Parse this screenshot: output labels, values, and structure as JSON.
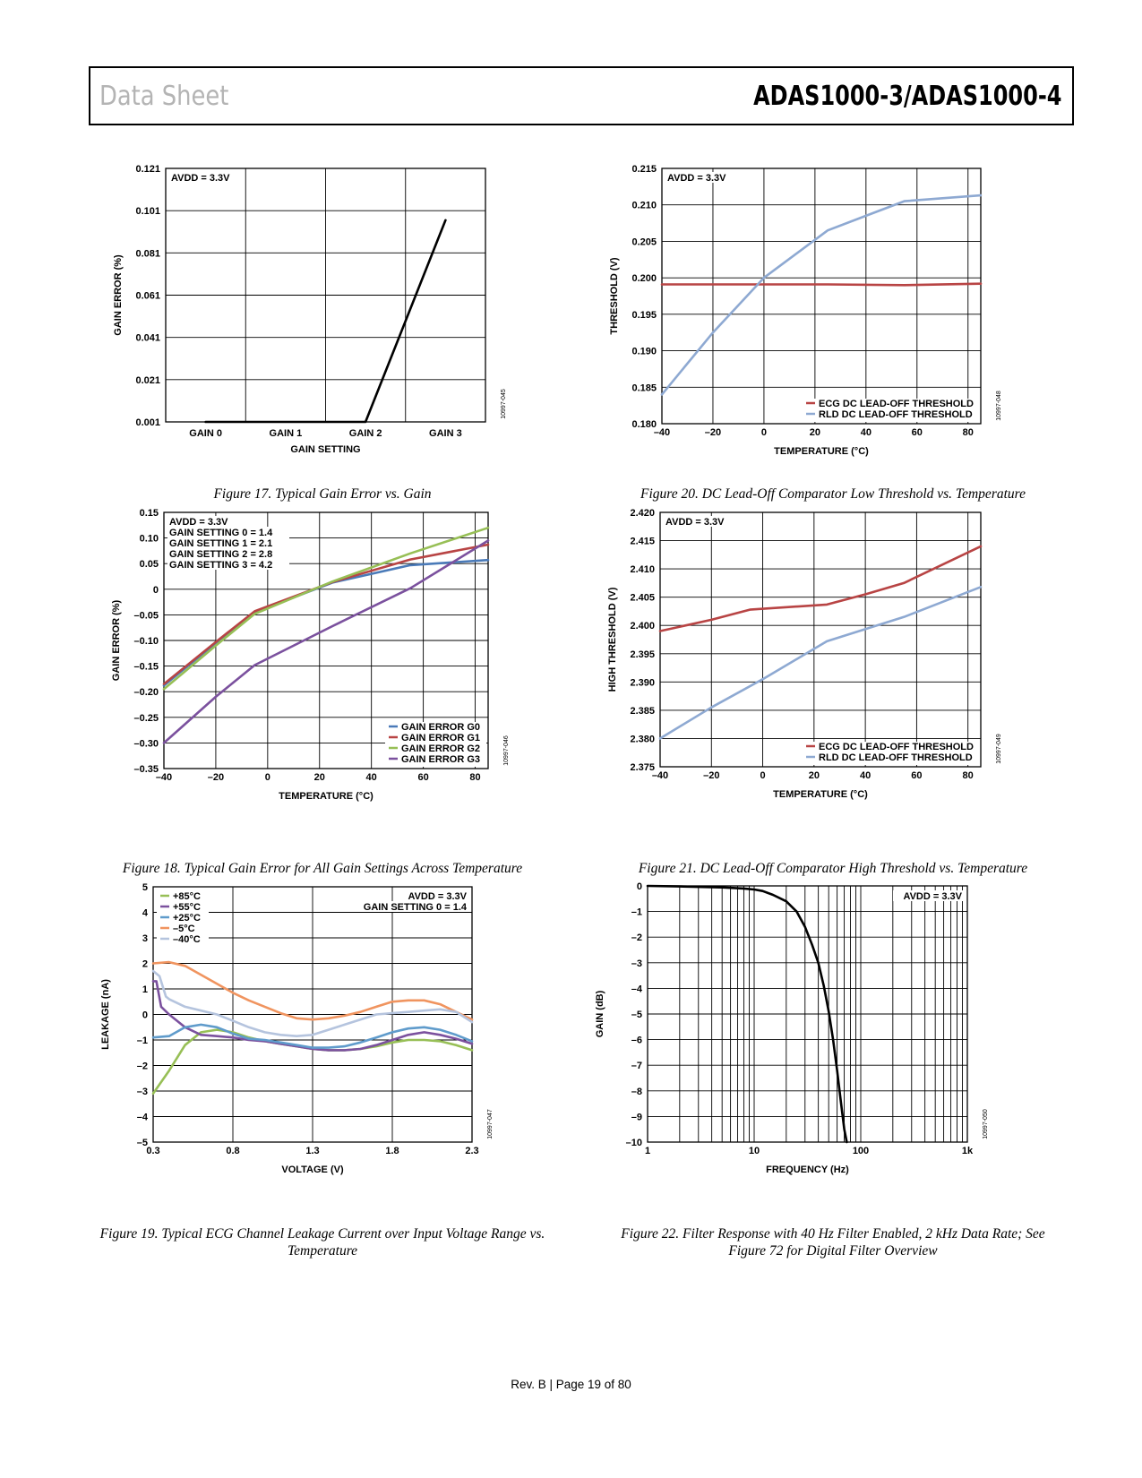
{
  "header": {
    "left": "Data Sheet",
    "right": "ADAS1000-3/ADAS1000-4"
  },
  "footer": "Rev. B | Page 19 of 80",
  "figures": [
    {
      "caption": "Figure 17. Typical Gain Error vs. Gain"
    },
    {
      "caption": "Figure 18. Typical Gain Error for All Gain Settings Across Temperature"
    },
    {
      "caption": "Figure 19. Typical ECG Channel Leakage Current over Input Voltage Range vs. Temperature"
    },
    {
      "caption": "Figure 20. DC Lead-Off Comparator Low Threshold vs. Temperature"
    },
    {
      "caption": "Figure 21. DC Lead-Off Comparator High Threshold vs. Temperature"
    },
    {
      "caption": "Figure 22. Filter Response with 40 Hz Filter Enabled, 2 kHz Data Rate; See Figure 72 for Digital Filter Overview"
    }
  ],
  "chart_data": [
    {
      "id": "fig17",
      "type": "line",
      "code": "10997-045",
      "xlabel": "GAIN SETTING",
      "ylabel": "GAIN ERROR (%)",
      "x_scale": "categorical",
      "xlim": [
        -0.5,
        3.5
      ],
      "ylim": [
        0.001,
        0.121
      ],
      "categories": [
        "GAIN 0",
        "GAIN 1",
        "GAIN 2",
        "GAIN 3"
      ],
      "yticks": [
        0.001,
        0.021,
        0.041,
        0.061,
        0.081,
        0.101,
        0.121
      ],
      "ytick_labels": [
        "0.001",
        "0.021",
        "0.041",
        "0.061",
        "0.081",
        "0.101",
        "0.121"
      ],
      "grid": true,
      "annotations": [
        {
          "text": "AVDD = 3.3V",
          "pos": "top-left"
        }
      ],
      "series": [
        {
          "color": "#000000",
          "x": [
            0,
            1,
            2,
            3
          ],
          "y": [
            0.001,
            0.001,
            0.001,
            0.0965
          ]
        }
      ]
    },
    {
      "id": "fig18",
      "type": "line",
      "code": "10997-046",
      "xlabel": "TEMPERATURE (°C)",
      "ylabel": "GAIN ERROR (%)",
      "xlim": [
        -40,
        85
      ],
      "ylim": [
        -0.35,
        0.15
      ],
      "xticks": [
        -40,
        -20,
        0,
        20,
        40,
        60,
        80
      ],
      "xtick_labels": [
        "–40",
        "–20",
        "0",
        "20",
        "40",
        "60",
        "80"
      ],
      "yticks": [
        -0.35,
        -0.3,
        -0.25,
        -0.2,
        -0.15,
        -0.1,
        -0.05,
        0,
        0.05,
        0.1,
        0.15
      ],
      "ytick_labels": [
        "–0.35",
        "–0.30",
        "–0.25",
        "–0.20",
        "–0.15",
        "–0.10",
        "–0.05",
        "0",
        "0.05",
        "0.10",
        "0.15"
      ],
      "grid": true,
      "legend": "bottom-right",
      "annotations": [
        {
          "text": "AVDD = 3.3V",
          "pos": "top-left"
        },
        {
          "text": "GAIN SETTING 0 = 1.4",
          "pos": "top-left"
        },
        {
          "text": "GAIN SETTING 1 = 2.1",
          "pos": "top-left"
        },
        {
          "text": "GAIN SETTING 2 = 2.8",
          "pos": "top-left"
        },
        {
          "text": "GAIN SETTING 3 = 4.2",
          "pos": "top-left"
        }
      ],
      "series": [
        {
          "name": "GAIN ERROR G0",
          "color": "#4a7ab8",
          "x": [
            -40,
            -20,
            -5,
            25,
            55,
            85
          ],
          "y": [
            -0.188,
            -0.105,
            -0.045,
            0.013,
            0.047,
            0.057
          ]
        },
        {
          "name": "GAIN ERROR G1",
          "color": "#b84444",
          "x": [
            -40,
            -20,
            -5,
            25,
            55,
            85
          ],
          "y": [
            -0.185,
            -0.103,
            -0.043,
            0.014,
            0.058,
            0.087
          ]
        },
        {
          "name": "GAIN ERROR G2",
          "color": "#97bf56",
          "x": [
            -40,
            -20,
            -5,
            25,
            55,
            85
          ],
          "y": [
            -0.195,
            -0.11,
            -0.048,
            0.015,
            0.07,
            0.12
          ]
        },
        {
          "name": "GAIN ERROR G3",
          "color": "#7b519e",
          "x": [
            -40,
            -20,
            -5,
            25,
            55,
            85
          ],
          "y": [
            -0.3,
            -0.21,
            -0.148,
            -0.072,
            0.002,
            0.095
          ]
        }
      ]
    },
    {
      "id": "fig19",
      "type": "line",
      "code": "10997-047",
      "xlabel": "VOLTAGE (V)",
      "ylabel": "LEAKAGE (nA)",
      "xlim": [
        0.3,
        2.3
      ],
      "ylim": [
        -5,
        5
      ],
      "xticks": [
        0.3,
        0.8,
        1.3,
        1.8,
        2.3
      ],
      "xtick_labels": [
        "0.3",
        "0.8",
        "1.3",
        "1.8",
        "2.3"
      ],
      "yticks": [
        -5,
        -4,
        -3,
        -2,
        -1,
        0,
        1,
        2,
        3,
        4,
        5
      ],
      "ytick_labels": [
        "–5",
        "–4",
        "–3",
        "–2",
        "–1",
        "0",
        "1",
        "2",
        "3",
        "4",
        "5"
      ],
      "grid": true,
      "legend": "top-left",
      "annotations": [
        {
          "text": "AVDD = 3.3V",
          "pos": "top-right"
        },
        {
          "text": "GAIN SETTING 0 = 1.4",
          "pos": "top-right"
        }
      ],
      "series": [
        {
          "name": "+85°C",
          "color": "#97bf56",
          "x": [
            0.3,
            0.4,
            0.5,
            0.6,
            0.7,
            0.8,
            0.9,
            1.0,
            1.1,
            1.2,
            1.3,
            1.4,
            1.5,
            1.6,
            1.7,
            1.8,
            1.9,
            2.0,
            2.1,
            2.2,
            2.3
          ],
          "y": [
            -3.1,
            -2.2,
            -1.2,
            -0.7,
            -0.6,
            -0.7,
            -0.9,
            -1.05,
            -1.15,
            -1.25,
            -1.35,
            -1.4,
            -1.4,
            -1.35,
            -1.25,
            -1.1,
            -1.0,
            -1.0,
            -1.05,
            -1.2,
            -1.4
          ]
        },
        {
          "name": "+55°C",
          "color": "#7b519e",
          "x": [
            0.3,
            0.32,
            0.35,
            0.4,
            0.5,
            0.6,
            0.7,
            0.8,
            0.9,
            1.0,
            1.1,
            1.2,
            1.3,
            1.4,
            1.5,
            1.6,
            1.7,
            1.8,
            1.9,
            2.0,
            2.1,
            2.2,
            2.3
          ],
          "y": [
            1.3,
            1.3,
            0.3,
            0.0,
            -0.5,
            -0.8,
            -0.85,
            -0.9,
            -1.0,
            -1.05,
            -1.15,
            -1.25,
            -1.35,
            -1.4,
            -1.4,
            -1.35,
            -1.2,
            -1.0,
            -0.8,
            -0.7,
            -0.8,
            -0.95,
            -1.15
          ]
        },
        {
          "name": "+25°C",
          "color": "#5f9bcb",
          "x": [
            0.3,
            0.4,
            0.5,
            0.6,
            0.7,
            0.8,
            0.9,
            1.0,
            1.1,
            1.2,
            1.3,
            1.4,
            1.5,
            1.6,
            1.7,
            1.8,
            1.9,
            2.0,
            2.1,
            2.2,
            2.3
          ],
          "y": [
            -0.9,
            -0.85,
            -0.5,
            -0.4,
            -0.5,
            -0.75,
            -0.95,
            -1.0,
            -1.1,
            -1.2,
            -1.3,
            -1.3,
            -1.25,
            -1.1,
            -0.9,
            -0.7,
            -0.55,
            -0.5,
            -0.6,
            -0.8,
            -1.05
          ]
        },
        {
          "name": "–5°C",
          "color": "#f0945f",
          "x": [
            0.3,
            0.4,
            0.5,
            0.6,
            0.7,
            0.8,
            0.9,
            1.0,
            1.1,
            1.2,
            1.3,
            1.4,
            1.5,
            1.6,
            1.7,
            1.8,
            1.9,
            2.0,
            2.1,
            2.2,
            2.3
          ],
          "y": [
            2.0,
            2.05,
            1.9,
            1.55,
            1.2,
            0.85,
            0.55,
            0.3,
            0.05,
            -0.15,
            -0.2,
            -0.15,
            -0.05,
            0.1,
            0.3,
            0.5,
            0.55,
            0.55,
            0.4,
            0.1,
            -0.2
          ]
        },
        {
          "name": "–40°C",
          "color": "#b5c4de",
          "x": [
            0.3,
            0.34,
            0.38,
            0.4,
            0.5,
            0.6,
            0.7,
            0.8,
            0.9,
            1.0,
            1.1,
            1.2,
            1.3,
            1.4,
            1.5,
            1.6,
            1.7,
            1.8,
            1.9,
            2.0,
            2.1,
            2.2,
            2.3
          ],
          "y": [
            1.7,
            1.5,
            0.7,
            0.6,
            0.3,
            0.15,
            0.0,
            -0.25,
            -0.5,
            -0.7,
            -0.8,
            -0.85,
            -0.8,
            -0.6,
            -0.4,
            -0.2,
            0.0,
            0.05,
            0.1,
            0.15,
            0.2,
            0.1,
            -0.3
          ]
        }
      ]
    },
    {
      "id": "fig20",
      "type": "line",
      "code": "10997-048",
      "xlabel": "TEMPERATURE (°C)",
      "ylabel": "THRESHOLD (V)",
      "xlim": [
        -40,
        85
      ],
      "ylim": [
        0.18,
        0.215
      ],
      "xticks": [
        -40,
        -20,
        0,
        20,
        40,
        60,
        80
      ],
      "xtick_labels": [
        "–40",
        "–20",
        "0",
        "20",
        "40",
        "60",
        "80"
      ],
      "yticks": [
        0.18,
        0.185,
        0.19,
        0.195,
        0.2,
        0.205,
        0.21,
        0.215
      ],
      "ytick_labels": [
        "0.180",
        "0.185",
        "0.190",
        "0.195",
        "0.200",
        "0.205",
        "0.210",
        "0.215"
      ],
      "grid": true,
      "legend": "bottom-right",
      "annotations": [
        {
          "text": "AVDD = 3.3V",
          "pos": "top-left"
        }
      ],
      "series": [
        {
          "name": "ECG DC LEAD-OFF THRESHOLD",
          "color": "#b84444",
          "x": [
            -40,
            -20,
            0,
            25,
            55,
            85
          ],
          "y": [
            0.1991,
            0.1991,
            0.1991,
            0.1991,
            0.199,
            0.1992
          ]
        },
        {
          "name": "RLD DC LEAD-OFF THRESHOLD",
          "color": "#8ea9d2",
          "x": [
            -40,
            -20,
            0,
            25,
            40,
            55,
            85
          ],
          "y": [
            0.184,
            0.1925,
            0.2,
            0.2065,
            0.2085,
            0.2105,
            0.2113
          ]
        }
      ]
    },
    {
      "id": "fig21",
      "type": "line",
      "code": "10997-049",
      "xlabel": "TEMPERATURE (°C)",
      "ylabel": "HIGH THRESHOLD (V)",
      "xlim": [
        -40,
        85
      ],
      "ylim": [
        2.375,
        2.42
      ],
      "xticks": [
        -40,
        -20,
        0,
        20,
        40,
        60,
        80
      ],
      "xtick_labels": [
        "–40",
        "–20",
        "0",
        "20",
        "40",
        "60",
        "80"
      ],
      "yticks": [
        2.375,
        2.38,
        2.385,
        2.39,
        2.395,
        2.4,
        2.405,
        2.41,
        2.415,
        2.42
      ],
      "ytick_labels": [
        "2.375",
        "2.380",
        "2.385",
        "2.390",
        "2.395",
        "2.400",
        "2.405",
        "2.410",
        "2.415",
        "2.420"
      ],
      "grid": true,
      "legend": "bottom-right",
      "annotations": [
        {
          "text": "AVDD = 3.3V",
          "pos": "top-left"
        }
      ],
      "series": [
        {
          "name": "ECG DC LEAD-OFF THRESHOLD",
          "color": "#b84444",
          "x": [
            -40,
            -20,
            -5,
            25,
            40,
            55,
            85
          ],
          "y": [
            2.399,
            2.401,
            2.4028,
            2.4037,
            2.4055,
            2.4075,
            2.414
          ]
        },
        {
          "name": "RLD DC LEAD-OFF THRESHOLD",
          "color": "#8ea9d2",
          "x": [
            -40,
            -20,
            0,
            25,
            55,
            85
          ],
          "y": [
            2.38,
            2.3855,
            2.3905,
            2.3972,
            2.4015,
            2.4068
          ]
        }
      ]
    },
    {
      "id": "fig22",
      "type": "line",
      "code": "10997-050",
      "xlabel": "FREQUENCY (Hz)",
      "ylabel": "GAIN (dB)",
      "x_scale": "log",
      "xlim": [
        1,
        1000
      ],
      "ylim": [
        -10,
        0
      ],
      "xticks": [
        1,
        10,
        100,
        1000
      ],
      "xtick_labels": [
        "1",
        "10",
        "100",
        "1k"
      ],
      "yticks": [
        -10,
        -9,
        -8,
        -7,
        -6,
        -5,
        -4,
        -3,
        -2,
        -1,
        0
      ],
      "ytick_labels": [
        "–10",
        "–9",
        "–8",
        "–7",
        "–6",
        "–5",
        "–4",
        "–3",
        "–2",
        "–1",
        "0"
      ],
      "grid": true,
      "annotations": [
        {
          "text": "AVDD = 3.3V",
          "pos": "top-right"
        }
      ],
      "series": [
        {
          "color": "#000000",
          "x": [
            1,
            2,
            5,
            8,
            10,
            12,
            15,
            20,
            25,
            30,
            35,
            40,
            45,
            50,
            55,
            60,
            65,
            70,
            74
          ],
          "y": [
            0,
            -0.02,
            -0.06,
            -0.1,
            -0.14,
            -0.2,
            -0.35,
            -0.6,
            -1.0,
            -1.6,
            -2.3,
            -3.0,
            -3.9,
            -4.9,
            -6.0,
            -7.2,
            -8.4,
            -9.5,
            -10
          ]
        }
      ]
    }
  ]
}
